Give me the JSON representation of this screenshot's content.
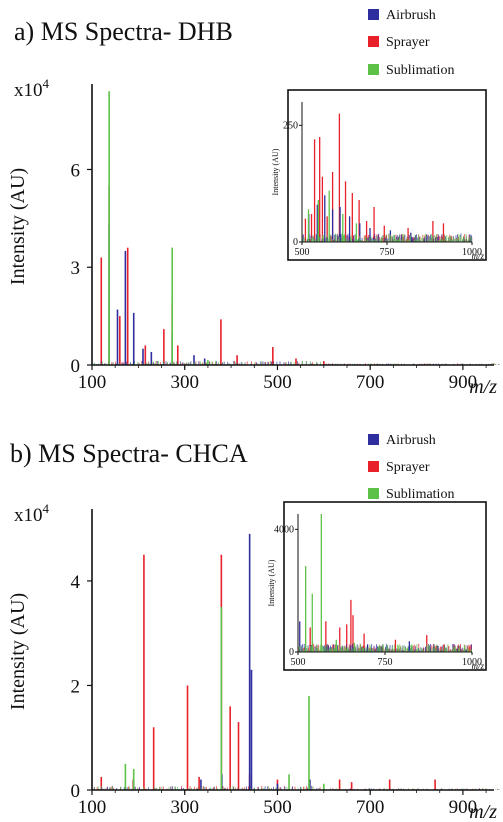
{
  "figure": {
    "panels": [
      {
        "panel_title": "a) MS Spectra- DHB"
      },
      {
        "panel_title": "b) MS Spectra- CHCA"
      }
    ]
  },
  "legend_entries": [
    {
      "label": "Airbrush",
      "color": "#2e2e9e"
    },
    {
      "label": "Sprayer",
      "color": "#e8202a"
    },
    {
      "label": "Sublimation",
      "color": "#5cc247"
    }
  ],
  "chart_data": [
    {
      "type": "line",
      "title": "a) MS Spectra- DHB",
      "xlabel": "m/z",
      "ylabel": "Intensity (AU)",
      "y_multiplier_label": "x10",
      "y_multiplier_exponent": "4",
      "xlim": [
        100,
        980
      ],
      "ylim": [
        0,
        8.5
      ],
      "x_ticks": [
        100,
        300,
        500,
        700,
        900
      ],
      "y_ticks": [
        0,
        3,
        6
      ],
      "legend_position": "top-right",
      "grid": false,
      "series": [
        {
          "name": "Airbrush",
          "color": "#2e2e9e",
          "peaks": [
            [
              137,
              4.3
            ],
            [
              155,
              1.7
            ],
            [
              172,
              3.5
            ],
            [
              190,
              1.6
            ],
            [
              210,
              0.5
            ],
            [
              228,
              0.4
            ],
            [
              273,
              1.0
            ],
            [
              320,
              0.3
            ],
            [
              343,
              0.2
            ]
          ]
        },
        {
          "name": "Sprayer",
          "color": "#e8202a",
          "peaks": [
            [
              120,
              3.3
            ],
            [
              137,
              5.5
            ],
            [
              160,
              1.5
            ],
            [
              177,
              3.6
            ],
            [
              215,
              0.6
            ],
            [
              255,
              1.1
            ],
            [
              273,
              1.9
            ],
            [
              285,
              0.6
            ],
            [
              378,
              1.4
            ],
            [
              413,
              0.3
            ],
            [
              490,
              0.55
            ],
            [
              540,
              0.2
            ],
            [
              600,
              0.12
            ]
          ]
        },
        {
          "name": "Sublimation",
          "color": "#5cc247",
          "peaks": [
            [
              137,
              8.4
            ],
            [
              273,
              3.6
            ],
            [
              350,
              0.15
            ]
          ]
        }
      ],
      "inset": {
        "xlabel": "m/z",
        "ylabel": "Intensity (AU)",
        "xlim": [
          500,
          1000
        ],
        "ylim": [
          0,
          300
        ],
        "x_ticks": [
          500,
          750,
          1000
        ],
        "y_ticks": [
          0,
          250
        ],
        "series": [
          {
            "name": "Airbrush",
            "peaks": [
              [
                520,
                60
              ],
              [
                545,
                80
              ],
              [
                567,
                100
              ],
              [
                590,
                70
              ],
              [
                612,
                75
              ],
              [
                640,
                55
              ],
              [
                670,
                40
              ],
              [
                700,
                30
              ],
              [
                760,
                25
              ],
              [
                820,
                20
              ]
            ]
          },
          {
            "name": "Sprayer",
            "peaks": [
              [
                510,
                50
              ],
              [
                528,
                60
              ],
              [
                537,
                220
              ],
              [
                552,
                225
              ],
              [
                560,
                140
              ],
              [
                574,
                55
              ],
              [
                590,
                150
              ],
              [
                610,
                275
              ],
              [
                628,
                130
              ],
              [
                648,
                105
              ],
              [
                668,
                90
              ],
              [
                690,
                45
              ],
              [
                712,
                75
              ],
              [
                742,
                35
              ],
              [
                812,
                30
              ],
              [
                885,
                45
              ],
              [
                916,
                40
              ]
            ]
          },
          {
            "name": "Sublimation",
            "peaks": [
              [
                519,
                70
              ],
              [
                548,
                90
              ],
              [
                580,
                110
              ],
              [
                620,
                60
              ],
              [
                660,
                40
              ]
            ]
          }
        ]
      }
    },
    {
      "type": "line",
      "title": "b) MS Spectra- CHCA",
      "xlabel": "m/z",
      "ylabel": "Intensity (AU)",
      "y_multiplier_label": "x10",
      "y_multiplier_exponent": "4",
      "xlim": [
        100,
        980
      ],
      "ylim": [
        0,
        5.3
      ],
      "x_ticks": [
        100,
        300,
        500,
        700,
        900
      ],
      "y_ticks": [
        0,
        2,
        4
      ],
      "legend_position": "top-right",
      "grid": false,
      "series": [
        {
          "name": "Airbrush",
          "color": "#2e2e9e",
          "peaks": [
            [
              190,
              0.15
            ],
            [
              335,
              0.2
            ],
            [
              380,
              0.3
            ],
            [
              440,
              4.9
            ],
            [
              444,
              2.3
            ],
            [
              500,
              0.12
            ],
            [
              570,
              0.2
            ]
          ]
        },
        {
          "name": "Sprayer",
          "color": "#e8202a",
          "peaks": [
            [
              120,
              0.25
            ],
            [
              189,
              0.2
            ],
            [
              212,
              4.5
            ],
            [
              233,
              1.2
            ],
            [
              306,
              2.0
            ],
            [
              331,
              0.25
            ],
            [
              379,
              4.5
            ],
            [
              398,
              1.6
            ],
            [
              416,
              1.3
            ],
            [
              440,
              0.3
            ],
            [
              500,
              0.2
            ],
            [
              634,
              0.2
            ],
            [
              660,
              0.15
            ],
            [
              742,
              0.2
            ],
            [
              840,
              0.2
            ]
          ]
        },
        {
          "name": "Sublimation",
          "color": "#5cc247",
          "peaks": [
            [
              172,
              0.5
            ],
            [
              190,
              0.4
            ],
            [
              379,
              3.5
            ],
            [
              525,
              0.3
            ],
            [
              568,
              1.8
            ],
            [
              600,
              0.12
            ]
          ]
        }
      ],
      "inset": {
        "xlabel": "m/z",
        "ylabel": "Intensity (AU)",
        "xlim": [
          500,
          1000
        ],
        "ylim": [
          0,
          4500
        ],
        "x_ticks": [
          500,
          750,
          1000
        ],
        "y_ticks": [
          0,
          4000
        ],
        "series": [
          {
            "name": "Airbrush",
            "peaks": [
              [
                505,
                1000
              ],
              [
                700,
                250
              ],
              [
                730,
                150
              ],
              [
                820,
                350
              ],
              [
                900,
                200
              ]
            ]
          },
          {
            "name": "Sprayer",
            "peaks": [
              [
                535,
                800
              ],
              [
                580,
                1000
              ],
              [
                620,
                800
              ],
              [
                640,
                900
              ],
              [
                652,
                1700
              ],
              [
                658,
                1200
              ],
              [
                690,
                600
              ],
              [
                780,
                400
              ],
              [
                870,
                550
              ],
              [
                920,
                250
              ],
              [
                960,
                200
              ]
            ]
          },
          {
            "name": "Sublimation",
            "peaks": [
              [
                522,
                2800
              ],
              [
                541,
                1900
              ],
              [
                567,
                4500
              ],
              [
                610,
                400
              ],
              [
                662,
                300
              ]
            ]
          }
        ]
      }
    }
  ]
}
